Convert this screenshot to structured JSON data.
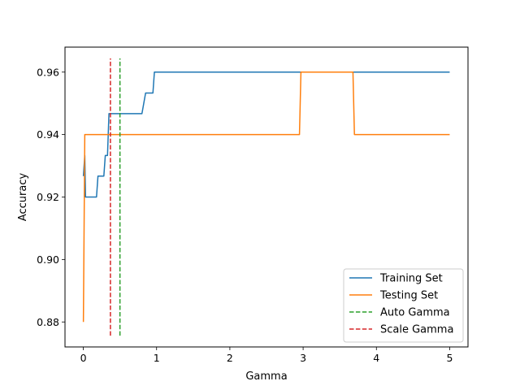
{
  "chart_data": {
    "type": "line",
    "title": "",
    "xlabel": "Gamma",
    "ylabel": "Accuracy",
    "xlim": [
      -0.25,
      5.25
    ],
    "ylim": [
      0.872,
      0.968
    ],
    "xticks": [
      0,
      1,
      2,
      3,
      4,
      5
    ],
    "xtick_labels": [
      "0",
      "1",
      "2",
      "3",
      "4",
      "5"
    ],
    "yticks": [
      0.88,
      0.9,
      0.92,
      0.94,
      0.96
    ],
    "ytick_labels": [
      "0.88",
      "0.90",
      "0.92",
      "0.94",
      "0.96"
    ],
    "grid": false,
    "legend_position": "lower-right",
    "series": [
      {
        "name": "Training Set",
        "color": "#1f77b4",
        "style": "solid",
        "x": [
          0.001,
          0.02,
          0.03,
          0.05,
          0.1,
          0.15,
          0.18,
          0.2,
          0.25,
          0.28,
          0.3,
          0.33,
          0.35,
          0.38,
          0.4,
          0.5,
          0.6,
          0.7,
          0.8,
          0.85,
          0.9,
          0.95,
          0.97,
          1.0,
          1.5,
          2.0,
          2.5,
          3.0,
          3.5,
          4.0,
          4.5,
          5.0
        ],
        "y": [
          0.9267,
          0.9333,
          0.92,
          0.92,
          0.92,
          0.92,
          0.92,
          0.9267,
          0.9267,
          0.9267,
          0.9333,
          0.9333,
          0.9467,
          0.9467,
          0.9467,
          0.9467,
          0.9467,
          0.9467,
          0.9467,
          0.9533,
          0.9533,
          0.9533,
          0.96,
          0.96,
          0.96,
          0.96,
          0.96,
          0.96,
          0.96,
          0.96,
          0.96,
          0.96
        ]
      },
      {
        "name": "Testing Set",
        "color": "#ff7f0e",
        "style": "solid",
        "x": [
          0.001,
          0.02,
          0.5,
          1.0,
          2.0,
          2.95,
          2.97,
          3.0,
          3.5,
          3.68,
          3.7,
          4.0,
          4.5,
          5.0
        ],
        "y": [
          0.88,
          0.94,
          0.94,
          0.94,
          0.94,
          0.94,
          0.96,
          0.96,
          0.96,
          0.96,
          0.94,
          0.94,
          0.94,
          0.94
        ]
      },
      {
        "name": "Auto Gamma",
        "color": "#2ca02c",
        "style": "dashed",
        "x": [
          0.5,
          0.5
        ],
        "y": [
          0.8756,
          0.9644
        ]
      },
      {
        "name": "Scale Gamma",
        "color": "#d62728",
        "style": "dashed",
        "x": [
          0.37,
          0.37
        ],
        "y": [
          0.8756,
          0.9644
        ]
      }
    ]
  }
}
